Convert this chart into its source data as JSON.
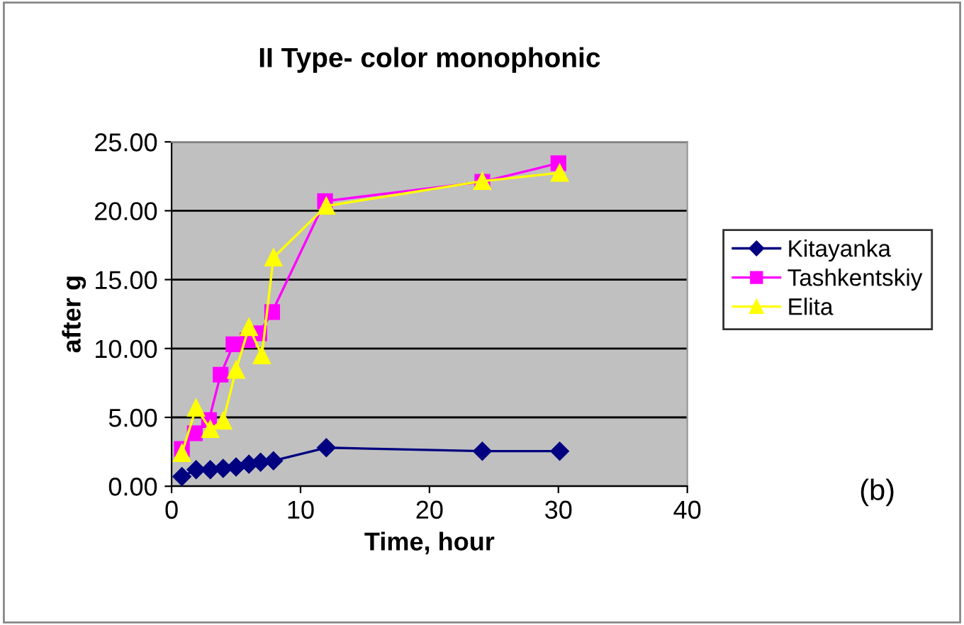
{
  "chart_data": {
    "type": "line",
    "title": "II Type- color monophonic",
    "xlabel": "Time, hour",
    "ylabel": "after g",
    "annotations": [
      "(b)"
    ],
    "xlim": [
      0,
      40
    ],
    "xticks": [
      0,
      10,
      20,
      30,
      40
    ],
    "ylim": [
      0,
      25
    ],
    "yticks": [
      {
        "value": 0,
        "label": "0.00"
      },
      {
        "value": 5,
        "label": "5.00"
      },
      {
        "value": 10,
        "label": "10.00"
      },
      {
        "value": 15,
        "label": "15.00"
      },
      {
        "value": 20,
        "label": "20.00"
      },
      {
        "value": 25,
        "label": "25.00"
      }
    ],
    "grid": "y",
    "legend": "right",
    "line_style": "solid",
    "series": [
      {
        "name": "Kitayanka",
        "color": "#000080",
        "marker": "diamond",
        "x": [
          0.8,
          1.9,
          3.0,
          4.0,
          5.0,
          6.0,
          6.9,
          7.9,
          12.0,
          24.1,
          30.1
        ],
        "values": [
          0.7,
          1.2,
          1.2,
          1.3,
          1.4,
          1.6,
          1.75,
          1.85,
          2.8,
          2.55,
          2.55
        ]
      },
      {
        "name": "Tashkentskiy",
        "color": "#ff00ff",
        "marker": "square",
        "x": [
          0.8,
          1.8,
          2.9,
          3.8,
          4.8,
          5.9,
          6.8,
          7.8,
          11.9,
          24.1,
          30.0
        ],
        "values": [
          2.7,
          3.85,
          4.8,
          8.1,
          10.3,
          10.6,
          11.1,
          12.65,
          20.7,
          22.1,
          23.45
        ]
      },
      {
        "name": "Elita",
        "color": "#ffff00",
        "marker": "triangle",
        "x": [
          0.8,
          1.9,
          3.0,
          4.0,
          5.0,
          6.0,
          7.0,
          7.9,
          12.0,
          24.1,
          30.1
        ],
        "values": [
          2.4,
          5.7,
          4.15,
          4.75,
          8.45,
          11.55,
          9.5,
          16.6,
          20.35,
          22.15,
          22.75
        ]
      }
    ]
  }
}
